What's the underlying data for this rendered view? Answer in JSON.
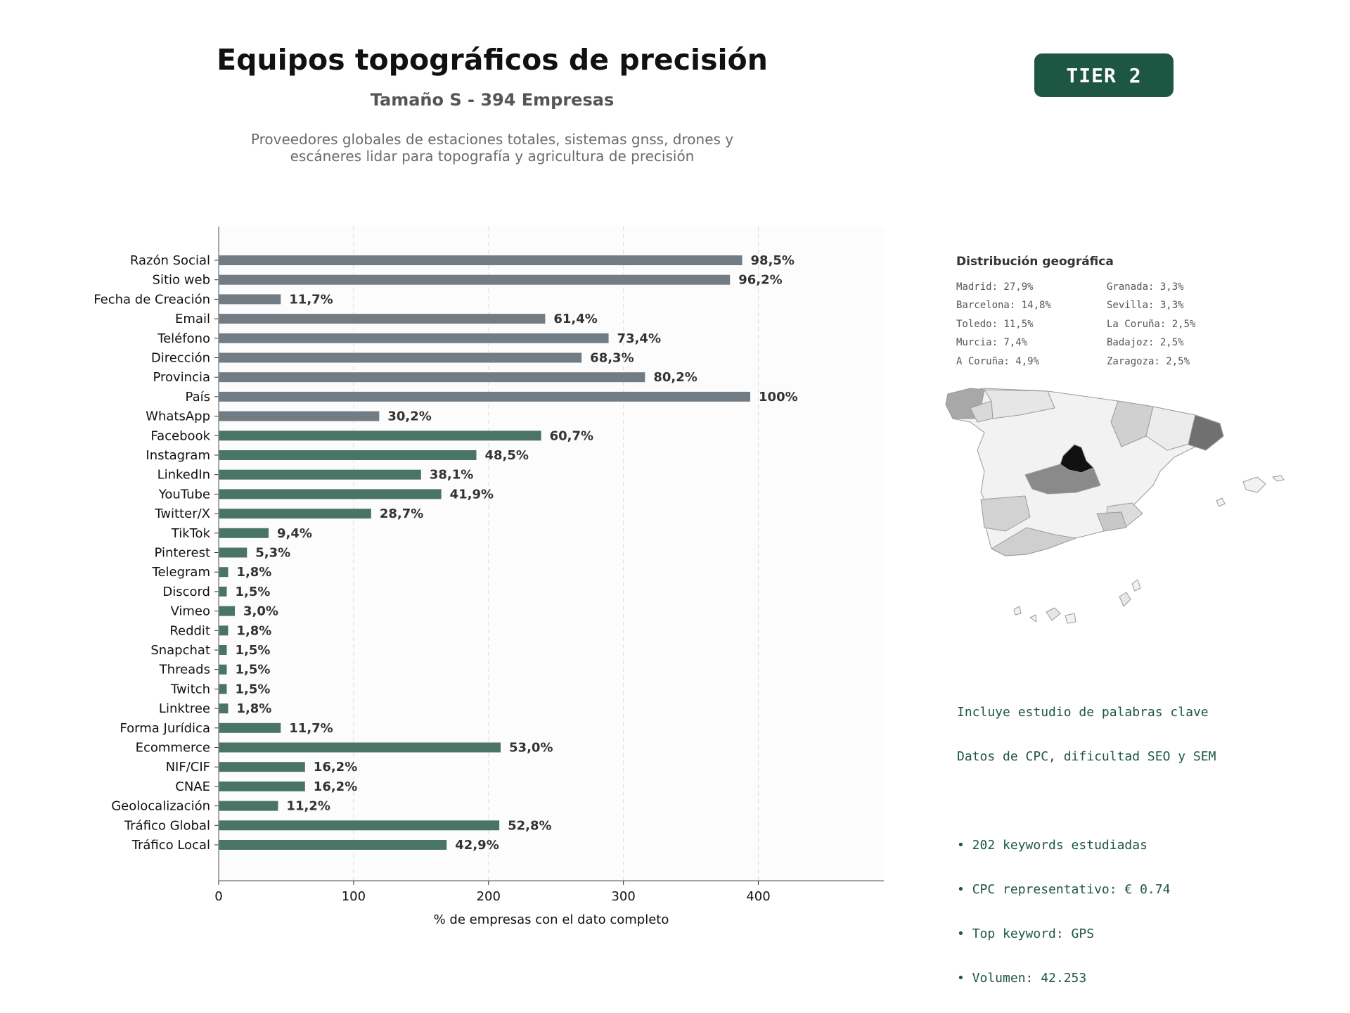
{
  "header": {
    "title": "Equipos topográficos de precisión",
    "subtitle": "Tamaño S - 394 Empresas",
    "description_lines": [
      "Proveedores globales de estaciones totales, sistemas gnss, drones y",
      "escáneres lidar para topografía y agricultura de precisión"
    ],
    "tier": "TIER 2"
  },
  "chart_data": {
    "type": "bar",
    "orientation": "horizontal",
    "xlabel": "% de empresas con el dato completo",
    "ylabel": "",
    "xlim": [
      0,
      493
    ],
    "xticks": [
      0,
      100,
      200,
      300,
      400
    ],
    "grid": "vertical dashed",
    "categories": [
      "Razón Social",
      "Sitio web",
      "Fecha de Creación",
      "Email",
      "Teléfono",
      "Dirección",
      "Provincia",
      "País",
      "WhatsApp",
      "Facebook",
      "Instagram",
      "LinkedIn",
      "YouTube",
      "Twitter/X",
      "TikTok",
      "Pinterest",
      "Telegram",
      "Discord",
      "Vimeo",
      "Reddit",
      "Snapchat",
      "Threads",
      "Twitch",
      "Linktree",
      "Forma Jurídica",
      "Ecommerce",
      "NIF/CIF",
      "CNAE",
      "Geolocalización",
      "Tráfico Global",
      "Tráfico Local"
    ],
    "values": [
      388,
      379,
      46,
      242,
      289,
      269,
      316,
      394,
      119,
      239,
      191,
      150,
      165,
      113,
      37,
      21,
      7,
      6,
      12,
      7,
      6,
      6,
      6,
      7,
      46,
      209,
      64,
      64,
      44,
      208,
      169
    ],
    "labels": [
      "98,5%",
      "96,2%",
      "11,7%",
      "61,4%",
      "73,4%",
      "68,3%",
      "80,2%",
      "100%",
      "30,2%",
      "60,7%",
      "48,5%",
      "38,1%",
      "41,9%",
      "28,7%",
      "9,4%",
      "5,3%",
      "1,8%",
      "1,5%",
      "3,0%",
      "1,8%",
      "1,5%",
      "1,5%",
      "1,5%",
      "1,8%",
      "11,7%",
      "53,0%",
      "16,2%",
      "16,2%",
      "11,2%",
      "52,8%",
      "42,9%"
    ],
    "groups": [
      "basic",
      "basic",
      "basic",
      "basic",
      "basic",
      "basic",
      "basic",
      "basic",
      "basic",
      "digital",
      "digital",
      "digital",
      "digital",
      "digital",
      "digital",
      "digital",
      "digital",
      "digital",
      "digital",
      "digital",
      "digital",
      "digital",
      "digital",
      "digital",
      "digital",
      "digital",
      "digital",
      "digital",
      "digital",
      "digital",
      "digital"
    ],
    "colors": {
      "basic": "#717c85",
      "digital": "#4a7564"
    }
  },
  "geo": {
    "title": "Distribución geográfica",
    "items": [
      "Madrid: 27,9%",
      "Granada: 3,3%",
      "Barcelona: 14,8%",
      "Sevilla: 3,3%",
      "Toledo: 11,5%",
      "La Coruña: 2,5%",
      "Murcia: 7,4%",
      "Badajoz: 2,5%",
      "A Coruña: 4,9%",
      "Zaragoza: 2,5%"
    ]
  },
  "keywords": {
    "lines": [
      "Incluye estudio de palabras clave",
      "Datos de CPC, dificultad SEO y SEM",
      "",
      "• 202 keywords estudiadas",
      "• CPC representativo: € 0.74",
      "• Top keyword: GPS",
      "• Volumen: 42.253"
    ]
  }
}
